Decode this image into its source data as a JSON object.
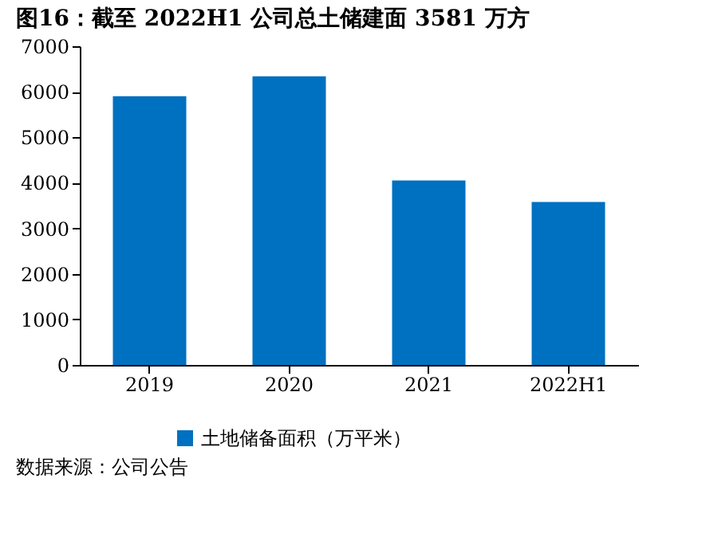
{
  "chart_data": {
    "type": "bar",
    "title": "图16：截至 2022H1 公司总土储建面 3581 万方",
    "categories": [
      "2019",
      "2020",
      "2021",
      "2022H1"
    ],
    "series": [
      {
        "name": "土地储备面积（万平米）",
        "color": "#0070c0",
        "values": [
          5900,
          6340,
          4050,
          3580
        ]
      }
    ],
    "ylim": [
      0,
      7000
    ],
    "yticks": [
      0,
      1000,
      2000,
      3000,
      4000,
      5000,
      6000,
      7000
    ],
    "legend": "bottom",
    "grid": false,
    "annotations": [
      "数据来源：公司公告"
    ]
  }
}
